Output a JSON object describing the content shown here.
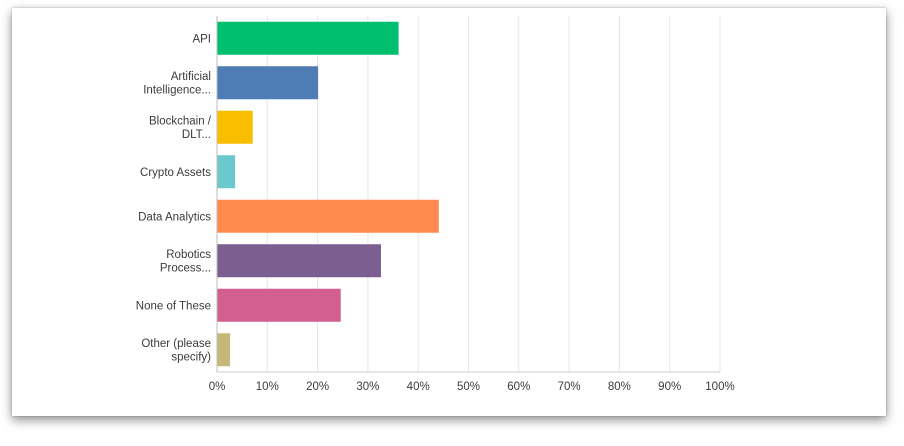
{
  "chart_data": {
    "type": "bar",
    "orientation": "horizontal",
    "categories": [
      [
        "API"
      ],
      [
        "Artificial",
        "Intelligence..."
      ],
      [
        "Blockchain /",
        "DLT..."
      ],
      [
        "Crypto Assets"
      ],
      [
        "Data Analytics"
      ],
      [
        "Robotics",
        "Process..."
      ],
      [
        "None of These"
      ],
      [
        "Other (please",
        "specify)"
      ]
    ],
    "values": [
      36,
      20,
      7,
      3.5,
      44,
      32.5,
      24.5,
      2.5
    ],
    "colors": [
      "#00bf6f",
      "#507cb6",
      "#f9be00",
      "#6bc8cd",
      "#ff8b4f",
      "#7d5e90",
      "#d25f90",
      "#c7b879"
    ],
    "xlim": [
      0,
      100
    ],
    "xticks": [
      "0%",
      "10%",
      "20%",
      "30%",
      "40%",
      "50%",
      "60%",
      "70%",
      "80%",
      "90%",
      "100%"
    ],
    "grid": true,
    "title": "",
    "xlabel": "",
    "ylabel": ""
  }
}
